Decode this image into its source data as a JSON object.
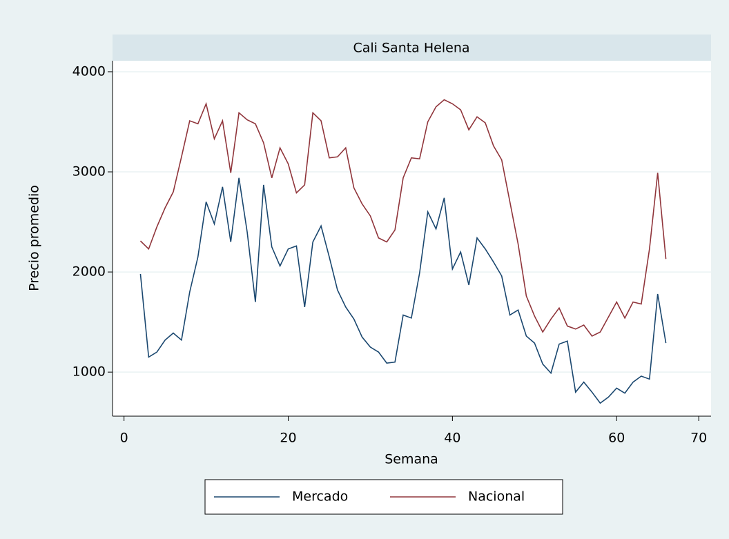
{
  "chart_data": {
    "type": "line",
    "title": "Cali Santa Helena",
    "x_label": "Semana",
    "y_label": "Precio promedio",
    "x": [
      2,
      3,
      4,
      5,
      6,
      7,
      8,
      9,
      10,
      11,
      12,
      13,
      14,
      15,
      16,
      17,
      18,
      19,
      20,
      21,
      22,
      23,
      24,
      25,
      26,
      27,
      28,
      29,
      30,
      31,
      32,
      33,
      34,
      35,
      36,
      37,
      38,
      39,
      40,
      41,
      42,
      43,
      44,
      45,
      46,
      47,
      48,
      49,
      50,
      51,
      52,
      53,
      54,
      55,
      56,
      57,
      58,
      59,
      60,
      61,
      62,
      63,
      64,
      65,
      66
    ],
    "series": [
      {
        "name": "Mercado",
        "color": "#1a476f",
        "values": [
          1980,
          1150,
          1200,
          1320,
          1390,
          1320,
          1800,
          2150,
          2700,
          2480,
          2850,
          2300,
          2940,
          2400,
          1700,
          2870,
          2250,
          2060,
          2230,
          2260,
          1650,
          2300,
          2460,
          2150,
          1820,
          1650,
          1530,
          1350,
          1250,
          1200,
          1090,
          1100,
          1570,
          1540,
          1990,
          2600,
          2430,
          2740,
          2030,
          2200,
          1870,
          2340,
          2230,
          2100,
          1960,
          1570,
          1620,
          1360,
          1290,
          1080,
          990,
          1280,
          1310,
          800,
          900,
          800,
          690,
          750,
          840,
          790,
          900,
          960,
          930,
          1780,
          1290
        ]
      },
      {
        "name": "Nacional",
        "color": "#90353b",
        "values": [
          2310,
          2230,
          2450,
          2640,
          2800,
          3150,
          3510,
          3480,
          3680,
          3330,
          3510,
          2990,
          3590,
          3520,
          3480,
          3290,
          2940,
          3240,
          3080,
          2790,
          2870,
          3590,
          3510,
          3140,
          3150,
          3240,
          2840,
          2680,
          2560,
          2340,
          2300,
          2420,
          2940,
          3140,
          3130,
          3500,
          3650,
          3720,
          3680,
          3620,
          3420,
          3550,
          3490,
          3260,
          3120,
          2700,
          2280,
          1760,
          1560,
          1400,
          1530,
          1640,
          1460,
          1430,
          1470,
          1360,
          1400,
          1550,
          1700,
          1540,
          1700,
          1680,
          2230,
          2990,
          2130
        ]
      }
    ],
    "xlim": [
      -1.4,
      71.5
    ],
    "ylim": [
      560,
      4110
    ],
    "xticks": [
      0,
      20,
      40,
      60,
      70
    ],
    "yticks": [
      1000,
      2000,
      3000,
      4000
    ],
    "grid": true,
    "legend": "bottom"
  }
}
